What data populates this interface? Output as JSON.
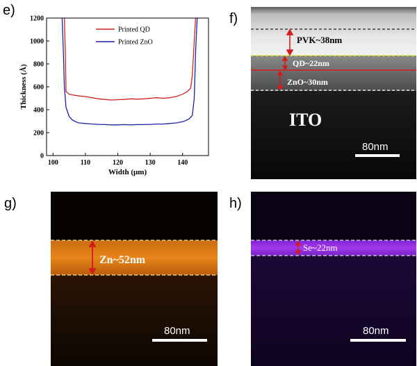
{
  "panels": {
    "e": {
      "label": "e)",
      "chart_data": {
        "type": "line",
        "xlabel": "Width (μm)",
        "ylabel": "Thickness (Å)",
        "xlim": [
          98,
          148
        ],
        "ylim": [
          0,
          1200
        ],
        "xticks": [
          100,
          110,
          120,
          130,
          140
        ],
        "yticks": [
          0,
          200,
          400,
          600,
          800,
          1000,
          1200
        ],
        "legend_position": "top-center",
        "series": [
          {
            "name": "Printed QD",
            "color": "#d42020",
            "x": [
              103.5,
              103.8,
              104,
              105,
              106,
              108,
              110,
              112,
              114,
              116,
              118,
              120,
              122,
              124,
              126,
              128,
              130,
              132,
              134,
              136,
              138,
              140,
              141.5,
              142.5,
              143,
              143.6,
              144
            ],
            "y": [
              1200,
              900,
              560,
              535,
              530,
              520,
              515,
              505,
              495,
              490,
              485,
              488,
              490,
              495,
              492,
              495,
              500,
              505,
              500,
              505,
              515,
              535,
              560,
              590,
              700,
              1000,
              1200
            ]
          },
          {
            "name": "Printed ZnO",
            "color": "#1f1fa8",
            "x": [
              102.8,
              103.2,
              103.5,
              104,
              105,
              106,
              107,
              108,
              110,
              112,
              114,
              116,
              118,
              120,
              122,
              124,
              126,
              128,
              130,
              132,
              134,
              136,
              138,
              140,
              141,
              142,
              143,
              143.6,
              144,
              144.5
            ],
            "y": [
              1200,
              900,
              600,
              420,
              340,
              310,
              295,
              285,
              280,
              275,
              272,
              270,
              268,
              268,
              270,
              268,
              270,
              270,
              272,
              275,
              275,
              280,
              285,
              295,
              305,
              320,
              350,
              500,
              900,
              1200
            ]
          }
        ]
      }
    },
    "f": {
      "label": "f)",
      "annotations": {
        "pvk": "PVK~38nm",
        "qd": "QD~22nm",
        "zno": "ZnO~30nm",
        "ito": "ITO"
      },
      "scalebar": "80nm",
      "colors": {
        "annotation": "#ffffff",
        "arrow": "#d41c1c",
        "dashed_line": "#f0f000"
      }
    },
    "g": {
      "label": "g)",
      "annotation": "Zn~52nm",
      "scalebar": "80nm",
      "colors": {
        "band": "#e07b12",
        "arrow": "#d41c1c"
      }
    },
    "h": {
      "label": "h)",
      "annotation": "Se~22nm",
      "scalebar": "80nm",
      "colors": {
        "band": "#a43aee",
        "arrow": "#d41c1c"
      }
    }
  }
}
